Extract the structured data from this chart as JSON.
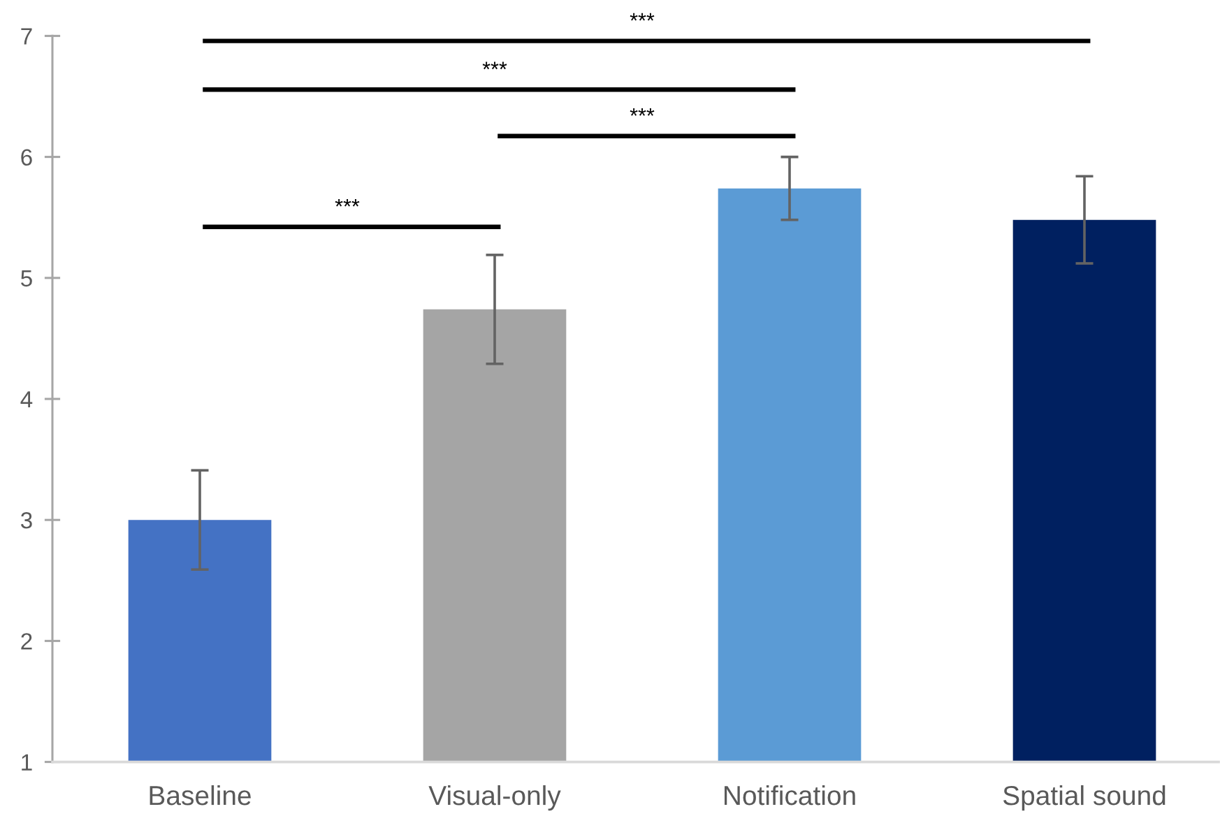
{
  "chart_data": {
    "type": "bar",
    "categories": [
      "Baseline",
      "Visual-only",
      "Notification",
      "Spatial sound"
    ],
    "values": [
      3.0,
      4.74,
      5.74,
      5.48
    ],
    "colors": [
      "#4472c4",
      "#a5a5a5",
      "#5b9bd5",
      "#002060"
    ],
    "errors": [
      0.41,
      0.45,
      0.26,
      0.36
    ],
    "ylim": [
      1,
      7
    ],
    "yticks": [
      1,
      2,
      3,
      4,
      5,
      6,
      7
    ],
    "annotations": [
      "***",
      "***",
      "***",
      "***"
    ]
  }
}
